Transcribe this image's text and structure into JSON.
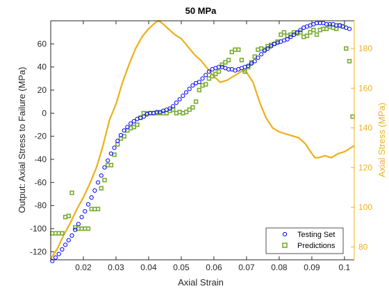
{
  "chart_data": {
    "type": "scatter",
    "title": "50 MPa",
    "xlabel": "Axial Strain",
    "ylabel": "Output: Axial Stress to Failure (MPa)",
    "ylabel_right": "Axial Stress (MPa)",
    "xlim": [
      0.01,
      0.103
    ],
    "ylim": [
      -127,
      80
    ],
    "ylim_right": [
      73.5,
      194
    ],
    "xticks": [
      "0.02",
      "0.03",
      "0.04",
      "0.05",
      "0.06",
      "0.07",
      "0.08",
      "0.09",
      "0.1"
    ],
    "xtick_values": [
      0.02,
      0.03,
      0.04,
      0.05,
      0.06,
      0.07,
      0.08,
      0.09,
      0.1
    ],
    "yticks": [
      "-120",
      "-100",
      "-80",
      "-60",
      "-40",
      "-20",
      "0",
      "20",
      "40",
      "60"
    ],
    "ytick_values": [
      -120,
      -100,
      -80,
      -60,
      -40,
      -20,
      0,
      20,
      40,
      60
    ],
    "yticks_right": [
      "80",
      "100",
      "120",
      "140",
      "160",
      "180"
    ],
    "ytick_values_right": [
      80,
      100,
      120,
      140,
      160,
      180
    ],
    "grid": false,
    "legend_position": "bottom-right",
    "colors": {
      "testing": "#0000FF",
      "predictions": "#77AC30",
      "curve": "#EDB120",
      "axis": "#262626"
    },
    "series": [
      {
        "name": "Testing Set",
        "marker": "circle",
        "axis": "left",
        "x": [
          0.0105,
          0.0115,
          0.0125,
          0.0135,
          0.0145,
          0.0155,
          0.0165,
          0.0175,
          0.0185,
          0.0195,
          0.0205,
          0.0215,
          0.0225,
          0.0235,
          0.0245,
          0.0255,
          0.0265,
          0.0275,
          0.0285,
          0.0295,
          0.0305,
          0.0315,
          0.0325,
          0.0335,
          0.0345,
          0.0355,
          0.0365,
          0.0375,
          0.0385,
          0.0395,
          0.0405,
          0.0415,
          0.0425,
          0.0435,
          0.0445,
          0.0455,
          0.0465,
          0.0475,
          0.0485,
          0.0495,
          0.0505,
          0.0515,
          0.0525,
          0.0535,
          0.0545,
          0.0555,
          0.0565,
          0.0575,
          0.0585,
          0.0595,
          0.0605,
          0.0615,
          0.0625,
          0.0635,
          0.0645,
          0.0655,
          0.0665,
          0.0675,
          0.0685,
          0.0695,
          0.0705,
          0.0715,
          0.0725,
          0.0735,
          0.0745,
          0.0755,
          0.0765,
          0.0775,
          0.0785,
          0.0795,
          0.0805,
          0.0815,
          0.0825,
          0.0835,
          0.0845,
          0.0855,
          0.0865,
          0.0875,
          0.0885,
          0.0895,
          0.0905,
          0.0915,
          0.0925,
          0.0935,
          0.0945,
          0.0955,
          0.0965,
          0.0975,
          0.0985,
          0.0995,
          0.1005,
          0.1015
        ],
        "y": [
          -128,
          -125,
          -122,
          -118,
          -114,
          -110,
          -106,
          -101,
          -96,
          -90,
          -85,
          -79,
          -73,
          -67,
          -60,
          -54,
          -47,
          -41,
          -35,
          -30,
          -24,
          -19,
          -15,
          -12,
          -9,
          -7,
          -5,
          -4,
          -3,
          -1,
          0,
          0,
          1,
          1,
          2,
          3,
          4,
          6,
          9,
          12,
          15,
          18,
          21,
          24,
          26,
          27,
          30,
          33,
          36,
          38,
          39,
          40,
          40,
          39,
          38,
          38,
          37,
          38,
          39,
          40,
          41,
          43,
          45,
          48,
          51,
          54,
          56,
          58,
          60,
          61,
          62,
          63,
          64,
          66,
          68,
          70,
          72,
          74,
          75,
          76,
          77,
          78,
          78,
          78,
          77,
          77,
          77,
          76,
          76,
          75,
          74,
          73
        ]
      },
      {
        "name": "Predictions",
        "marker": "square",
        "axis": "left",
        "x": [
          0.0105,
          0.0115,
          0.0125,
          0.0135,
          0.0145,
          0.0155,
          0.0165,
          0.0175,
          0.0185,
          0.0195,
          0.0205,
          0.0215,
          0.0225,
          0.0235,
          0.0245,
          0.0255,
          0.0265,
          0.0275,
          0.0285,
          0.0295,
          0.0305,
          0.0315,
          0.0325,
          0.0335,
          0.0345,
          0.0355,
          0.0365,
          0.0375,
          0.0385,
          0.0395,
          0.0405,
          0.0415,
          0.0425,
          0.0435,
          0.0445,
          0.0455,
          0.0465,
          0.0475,
          0.0485,
          0.0495,
          0.0505,
          0.0515,
          0.0525,
          0.0535,
          0.0545,
          0.0555,
          0.0565,
          0.0575,
          0.0585,
          0.0595,
          0.0605,
          0.0615,
          0.0625,
          0.0635,
          0.0645,
          0.0655,
          0.0665,
          0.0675,
          0.0685,
          0.0695,
          0.0705,
          0.0715,
          0.0725,
          0.0735,
          0.0745,
          0.0755,
          0.0765,
          0.0775,
          0.0785,
          0.0795,
          0.0805,
          0.0815,
          0.0825,
          0.0835,
          0.0845,
          0.0855,
          0.0865,
          0.0875,
          0.0885,
          0.0895,
          0.0905,
          0.0915,
          0.0925,
          0.0935,
          0.0945,
          0.0955,
          0.0965,
          0.0975,
          0.0985,
          0.0995,
          0.1005,
          0.1015,
          0.1025
        ],
        "y": [
          -104,
          -104,
          -104,
          -104,
          -90,
          -89,
          -69,
          -99,
          -100,
          -100,
          -100,
          -100,
          -83,
          -83,
          -83,
          -65,
          -58,
          -45,
          -45,
          -36,
          -27,
          -22,
          -20,
          -15,
          -13,
          -12,
          -10,
          -4,
          0,
          0,
          0,
          0,
          0,
          0,
          0,
          0,
          2,
          3,
          0,
          1,
          0,
          1,
          3,
          5,
          10,
          20,
          24,
          25,
          30,
          32,
          34,
          36,
          42,
          44,
          46,
          53,
          55,
          55,
          46,
          36,
          40,
          44,
          49,
          55,
          56,
          55,
          58,
          59,
          60,
          62,
          68,
          70,
          67,
          68,
          70,
          69,
          70,
          66,
          67,
          70,
          72,
          68,
          72,
          73,
          73,
          75,
          74,
          73,
          76,
          75,
          56,
          45,
          -3
        ]
      },
      {
        "name": "",
        "marker": "line",
        "axis": "right",
        "x": [
          0.01,
          0.012,
          0.014,
          0.016,
          0.018,
          0.02,
          0.022,
          0.024,
          0.026,
          0.028,
          0.03,
          0.032,
          0.034,
          0.036,
          0.038,
          0.04,
          0.042,
          0.043,
          0.044,
          0.046,
          0.048,
          0.05,
          0.052,
          0.054,
          0.056,
          0.058,
          0.06,
          0.062,
          0.064,
          0.066,
          0.068,
          0.069,
          0.07,
          0.072,
          0.074,
          0.076,
          0.078,
          0.08,
          0.082,
          0.084,
          0.086,
          0.088,
          0.09,
          0.091,
          0.092,
          0.094,
          0.096,
          0.098,
          0.1,
          0.102,
          0.103
        ],
        "y": [
          74,
          79,
          86,
          92,
          99,
          105,
          112,
          120,
          131,
          144,
          152,
          163,
          172,
          180,
          186,
          190,
          193,
          194,
          193,
          190,
          187,
          185,
          181,
          177,
          174,
          170,
          166,
          163,
          164,
          166,
          168,
          169,
          168,
          163,
          153,
          145,
          140,
          138,
          137,
          136,
          135,
          132,
          127,
          125,
          125,
          126,
          125,
          127,
          128,
          130,
          131
        ]
      }
    ]
  }
}
